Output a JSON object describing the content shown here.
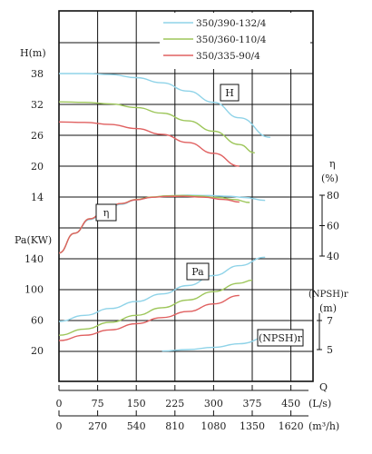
{
  "chart_data": {
    "type": "line",
    "legend": {
      "placement": "top-right",
      "entries": [
        {
          "label": "350/390-132/4",
          "color": "#8fd3e8"
        },
        {
          "label": "350/360-110/4",
          "color": "#9dc65a"
        },
        {
          "label": "350/335-90/4",
          "color": "#e06060"
        }
      ]
    },
    "axes": {
      "H": {
        "label": "H(m)",
        "ticks": [
          "38",
          "32",
          "26",
          "20",
          "14"
        ],
        "ylim": [
          14,
          38
        ]
      },
      "Pa": {
        "label": "Pa(KW)",
        "ticks": [
          "140",
          "100",
          "60",
          "20"
        ],
        "ylim": [
          20,
          140
        ]
      },
      "eta": {
        "label": "η",
        "unit": "(%)",
        "ticks": [
          "80",
          "60",
          "40"
        ],
        "ylim": [
          40,
          80
        ]
      },
      "npsh": {
        "label": "(NPSH)r",
        "unit": "(m)",
        "ticks": [
          "7",
          "5"
        ],
        "ylim": [
          5,
          7
        ]
      },
      "q_ls": {
        "label": "Q",
        "unit": "(L/s)",
        "ticks": [
          "0",
          "75",
          "150",
          "225",
          "300",
          "375",
          "450"
        ],
        "xlim": [
          0,
          450
        ]
      },
      "q_m3h": {
        "unit": "(m³/h)",
        "ticks": [
          "0",
          "270",
          "540",
          "810",
          "1080",
          "1350",
          "1620"
        ]
      }
    },
    "curve_labels": {
      "H": "H",
      "eta": "η",
      "Pa": "Pa",
      "npsh": "(NPSH)r"
    },
    "grid": true,
    "series": [
      {
        "name": "350/390-132/4",
        "color": "#8fd3e8",
        "H": {
          "x": [
            0,
            50,
            100,
            150,
            200,
            250,
            300,
            350,
            410
          ],
          "y": [
            38,
            38,
            37.8,
            37.2,
            36.2,
            34.6,
            32.4,
            29.4,
            25.6
          ]
        },
        "eta": {
          "x": [
            0,
            30,
            60,
            90,
            120,
            150,
            180,
            210,
            250,
            290,
            330,
            360,
            400
          ],
          "y": [
            42,
            55,
            64,
            70,
            74,
            77,
            78.6,
            79.6,
            80,
            79.8,
            79.3,
            78.5,
            76.6
          ]
        },
        "Pa": {
          "x": [
            0,
            50,
            100,
            150,
            200,
            250,
            300,
            350,
            400
          ],
          "y": [
            58,
            66,
            75,
            84,
            94,
            105,
            118,
            131,
            142
          ]
        },
        "npsh": {
          "x": [
            200,
            250,
            300,
            350,
            410
          ],
          "y": [
            4.9,
            5.0,
            5.15,
            5.4,
            5.9
          ]
        }
      },
      {
        "name": "350/360-110/4",
        "color": "#9dc65a",
        "H": {
          "x": [
            0,
            50,
            100,
            150,
            200,
            250,
            300,
            350,
            380
          ],
          "y": [
            32.5,
            32.4,
            32.1,
            31.4,
            30.3,
            28.8,
            26.8,
            24.2,
            22.6
          ]
        },
        "eta": {
          "x": [
            0,
            30,
            60,
            90,
            120,
            150,
            180,
            210,
            240,
            270,
            310,
            340,
            370
          ],
          "y": [
            42,
            55,
            64.5,
            70.5,
            74.5,
            77.2,
            78.8,
            79.6,
            79.8,
            79.5,
            78.5,
            77.2,
            75.2
          ]
        },
        "Pa": {
          "x": [
            0,
            50,
            100,
            150,
            200,
            250,
            300,
            350,
            375
          ],
          "y": [
            40,
            48,
            57,
            66,
            76,
            86,
            97,
            108,
            112
          ]
        }
      },
      {
        "name": "350/335-90/4",
        "color": "#e06060",
        "H": {
          "x": [
            0,
            50,
            100,
            150,
            200,
            250,
            300,
            350
          ],
          "y": [
            28.6,
            28.5,
            28.1,
            27.3,
            26.2,
            24.6,
            22.5,
            20
          ]
        },
        "eta": {
          "x": [
            0,
            30,
            60,
            90,
            120,
            150,
            180,
            210,
            240,
            280,
            320,
            350
          ],
          "y": [
            42,
            55,
            64.5,
            70.5,
            74.5,
            77,
            78.6,
            79.2,
            79.3,
            78.7,
            77.2,
            75.5
          ]
        },
        "Pa": {
          "x": [
            0,
            50,
            100,
            150,
            200,
            250,
            300,
            350
          ],
          "y": [
            33,
            40,
            47,
            55,
            63,
            71,
            81,
            92
          ]
        }
      }
    ]
  }
}
